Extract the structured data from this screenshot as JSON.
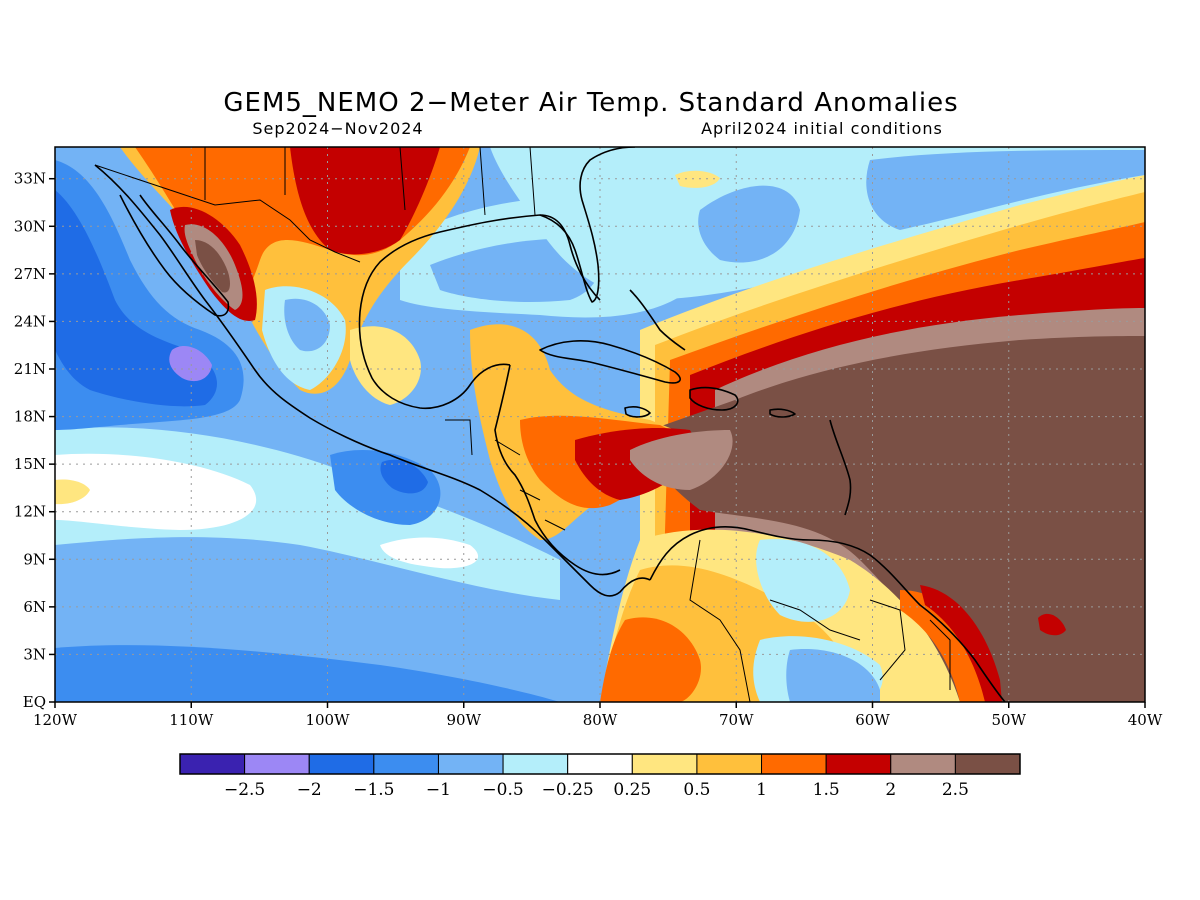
{
  "title": "GEM5_NEMO 2−Meter Air Temp. Standard Anomalies",
  "subtitle_left": "Sep2024−Nov2024",
  "subtitle_right": "April2024 initial conditions",
  "map": {
    "lon_range": [
      -120,
      -40
    ],
    "lat_range": [
      0,
      35
    ],
    "lon_ticks": [
      {
        "value": -120,
        "label": "120W"
      },
      {
        "value": -110,
        "label": "110W"
      },
      {
        "value": -100,
        "label": "100W"
      },
      {
        "value": -90,
        "label": "90W"
      },
      {
        "value": -80,
        "label": "80W"
      },
      {
        "value": -70,
        "label": "70W"
      },
      {
        "value": -60,
        "label": "60W"
      },
      {
        "value": -50,
        "label": "50W"
      },
      {
        "value": -40,
        "label": "40W"
      }
    ],
    "lat_ticks": [
      {
        "value": 0,
        "label": "EQ"
      },
      {
        "value": 3,
        "label": "3N"
      },
      {
        "value": 6,
        "label": "6N"
      },
      {
        "value": 9,
        "label": "9N"
      },
      {
        "value": 12,
        "label": "12N"
      },
      {
        "value": 15,
        "label": "15N"
      },
      {
        "value": 18,
        "label": "18N"
      },
      {
        "value": 21,
        "label": "21N"
      },
      {
        "value": 24,
        "label": "24N"
      },
      {
        "value": 27,
        "label": "27N"
      },
      {
        "value": 30,
        "label": "30N"
      },
      {
        "value": 33,
        "label": "33N"
      }
    ],
    "grid": true
  },
  "colorbar": {
    "colors": [
      "#3a22b0",
      "#9c87f5",
      "#1f6ce6",
      "#3c8df0",
      "#73b3f5",
      "#b4eefa",
      "#ffffff",
      "#ffe680",
      "#ffc03c",
      "#ff6a00",
      "#c40000",
      "#b08a80",
      "#7a5045"
    ],
    "labels": [
      "−2.5",
      "−2",
      "−1.5",
      "−1",
      "−0.5",
      "−0.25",
      "0.25",
      "0.5",
      "1",
      "1.5",
      "2",
      "2.5"
    ]
  }
}
